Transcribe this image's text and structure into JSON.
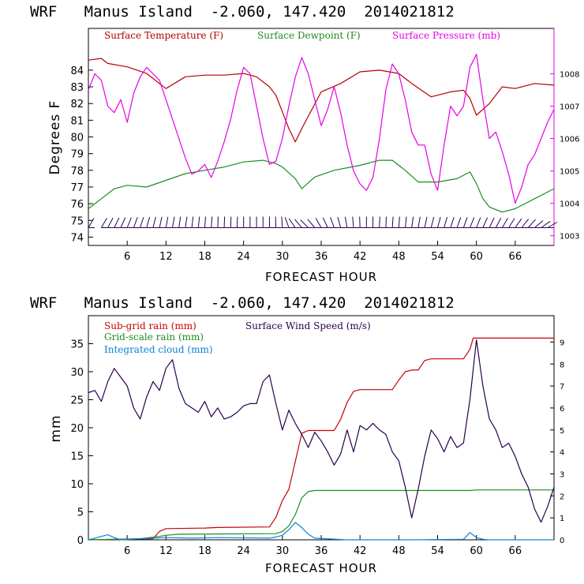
{
  "colors": {
    "temperature": "#b40000",
    "dewpoint": "#1e8c1e",
    "pressure": "#e600e6",
    "subgrid": "#c80000",
    "gridscale": "#1e8c1e",
    "cloud": "#0a82dc",
    "wind": "#280050",
    "barb": "#280050"
  },
  "chart_data": [
    {
      "type": "line",
      "title": "WRF   Manus Island  -2.060, 147.420  2014021812",
      "xlabel": "FORECAST HOUR",
      "ylabel": "Degrees F",
      "xlim": [
        0,
        72
      ],
      "xticks": [
        6,
        12,
        18,
        24,
        30,
        36,
        42,
        48,
        54,
        60,
        66
      ],
      "xtick_labels": [
        "6",
        "12",
        "18",
        "24",
        "30",
        "36",
        "42",
        "48",
        "54",
        "60",
        "66"
      ],
      "ylim": [
        73.5,
        86.5
      ],
      "yticks": [
        74,
        75,
        76,
        77,
        78,
        79,
        80,
        81,
        82,
        83,
        84
      ],
      "ytick_labels": [
        "74",
        "75",
        "76",
        "77",
        "78",
        "79",
        "80",
        "81",
        "82",
        "83",
        "84"
      ],
      "y2lim": [
        1002.7,
        1009.4
      ],
      "y2ticks": [
        1003,
        1004,
        1005,
        1006,
        1007,
        1008
      ],
      "y2tick_labels": [
        "1003",
        "1004",
        "1005",
        "1006",
        "1007",
        "1008"
      ],
      "legend": [
        "Surface Temperature (F)",
        "Surface Dewpoint (F)",
        "Surface Pressure (mb)"
      ],
      "series": [
        {
          "name": "Surface Temperature (F)",
          "axis": "left",
          "x": [
            0,
            2,
            3,
            6,
            9,
            12,
            15,
            18,
            21,
            24,
            26,
            28,
            29,
            30,
            31,
            32,
            33,
            36,
            39,
            42,
            45,
            48,
            50,
            53,
            56,
            58,
            59,
            60,
            62,
            64,
            66,
            69,
            72
          ],
          "y": [
            84.6,
            84.7,
            84.4,
            84.2,
            83.8,
            82.9,
            83.6,
            83.7,
            83.7,
            83.8,
            83.6,
            83.0,
            82.5,
            81.5,
            80.5,
            79.7,
            80.5,
            82.7,
            83.2,
            83.9,
            84.0,
            83.8,
            83.2,
            82.4,
            82.7,
            82.8,
            82.3,
            81.3,
            82.0,
            83.0,
            82.9,
            83.2,
            83.1
          ]
        },
        {
          "name": "Surface Dewpoint (F)",
          "axis": "left",
          "x": [
            0,
            2,
            4,
            6,
            9,
            12,
            15,
            18,
            21,
            24,
            27,
            29,
            30,
            32,
            33,
            35,
            38,
            42,
            45,
            47,
            49,
            51,
            54,
            57,
            59,
            60,
            61,
            62,
            64,
            66,
            69,
            72
          ],
          "y": [
            75.7,
            76.3,
            76.9,
            77.1,
            77.0,
            77.4,
            77.8,
            78.0,
            78.2,
            78.5,
            78.6,
            78.4,
            78.2,
            77.5,
            76.9,
            77.6,
            78.0,
            78.3,
            78.6,
            78.6,
            78.0,
            77.3,
            77.3,
            77.5,
            77.9,
            77.2,
            76.3,
            75.8,
            75.5,
            75.7,
            76.3,
            76.9
          ]
        },
        {
          "name": "Surface Pressure (mb)",
          "axis": "right",
          "x": [
            0,
            1,
            2,
            3,
            4,
            5,
            6,
            7,
            8,
            9,
            10,
            11,
            12,
            13,
            14,
            15,
            16,
            17,
            18,
            19,
            20,
            21,
            22,
            23,
            24,
            25,
            26,
            27,
            28,
            29,
            30,
            31,
            32,
            33,
            34,
            35,
            36,
            37,
            38,
            39,
            40,
            41,
            42,
            43,
            44,
            45,
            46,
            47,
            48,
            49,
            50,
            51,
            52,
            53,
            54,
            55,
            56,
            57,
            58,
            59,
            60,
            61,
            62,
            63,
            64,
            65,
            66,
            67,
            68,
            69,
            70,
            71,
            72
          ],
          "y": [
            1007.5,
            1008.0,
            1007.8,
            1007.0,
            1006.8,
            1007.2,
            1006.5,
            1007.4,
            1007.9,
            1008.2,
            1008.0,
            1007.8,
            1007.2,
            1006.6,
            1006.0,
            1005.4,
            1004.9,
            1005.0,
            1005.2,
            1004.8,
            1005.3,
            1005.9,
            1006.6,
            1007.5,
            1008.2,
            1008.0,
            1007.0,
            1006.0,
            1005.2,
            1005.3,
            1006.0,
            1007.0,
            1007.9,
            1008.5,
            1008.0,
            1007.2,
            1006.4,
            1006.9,
            1007.6,
            1006.8,
            1005.8,
            1005.0,
            1004.6,
            1004.4,
            1004.8,
            1006.0,
            1007.5,
            1008.3,
            1008.0,
            1007.2,
            1006.2,
            1005.8,
            1005.8,
            1004.9,
            1004.4,
            1005.8,
            1007.0,
            1006.7,
            1007.0,
            1008.2,
            1008.6,
            1007.2,
            1006.0,
            1006.2,
            1005.6,
            1004.9,
            1004.0,
            1004.5,
            1005.2,
            1005.5,
            1006.0,
            1006.5,
            1006.9
          ]
        }
      ],
      "wind_barbs": {
        "row_y": 74.8,
        "hours": [
          0,
          2,
          3,
          4,
          5,
          6,
          7,
          8,
          9,
          10,
          11,
          12,
          13,
          14,
          15,
          16,
          17,
          18,
          19,
          20,
          21,
          22,
          23,
          24,
          25,
          26,
          27,
          28,
          29,
          30,
          31,
          32,
          33,
          34,
          35,
          36,
          37,
          38,
          39,
          40,
          41,
          42,
          43,
          44,
          45,
          46,
          47,
          48,
          49,
          50,
          51,
          52,
          53,
          54,
          55,
          56,
          57,
          58,
          59,
          60,
          61,
          62,
          63,
          64,
          65,
          66,
          67,
          68,
          69,
          70,
          71
        ],
        "angle_deg": [
          60,
          60,
          62,
          64,
          66,
          68,
          70,
          72,
          74,
          76,
          78,
          80,
          80,
          82,
          82,
          84,
          84,
          86,
          86,
          88,
          88,
          88,
          88,
          90,
          90,
          90,
          90,
          90,
          92,
          94,
          110,
          125,
          130,
          135,
          130,
          120,
          115,
          110,
          105,
          100,
          95,
          92,
          90,
          90,
          88,
          88,
          86,
          86,
          84,
          82,
          80,
          78,
          76,
          75,
          74,
          72,
          70,
          70,
          68,
          68,
          66,
          64,
          62,
          60,
          58,
          55,
          52,
          48,
          40,
          35,
          30
        ]
      }
    },
    {
      "type": "line",
      "title": "WRF   Manus Island  -2.060, 147.420  2014021812",
      "xlabel": "FORECAST HOUR",
      "ylabel": "mm",
      "xlim": [
        0,
        72
      ],
      "xticks": [
        6,
        12,
        18,
        24,
        30,
        36,
        42,
        48,
        54,
        60,
        66
      ],
      "xtick_labels": [
        "6",
        "12",
        "18",
        "24",
        "30",
        "36",
        "42",
        "48",
        "54",
        "60",
        "66"
      ],
      "ylim": [
        0,
        40
      ],
      "yticks": [
        0,
        5,
        10,
        15,
        20,
        25,
        30,
        35
      ],
      "ytick_labels": [
        "0",
        "5",
        "10",
        "15",
        "20",
        "25",
        "30",
        "35"
      ],
      "y2lim": [
        0,
        10.2
      ],
      "y2ticks": [
        0,
        1,
        2,
        3,
        4,
        5,
        6,
        7,
        8,
        9
      ],
      "y2tick_labels": [
        "0",
        "1",
        "2",
        "3",
        "4",
        "5",
        "6",
        "7",
        "8",
        "9"
      ],
      "legend": [
        "Sub-grid rain (mm)",
        "Grid-scale rain (mm)",
        "Integrated cloud (mm)",
        "Surface Wind Speed (m/s)"
      ],
      "series": [
        {
          "name": "Sub-grid rain (mm)",
          "axis": "left",
          "x": [
            0,
            10,
            11,
            12,
            18,
            20,
            28,
            29,
            30,
            31,
            32,
            33,
            34,
            35,
            38,
            39,
            40,
            41,
            42,
            47,
            48,
            49,
            50,
            51,
            52,
            53,
            58,
            59,
            59.5,
            72
          ],
          "y": [
            0,
            0.2,
            1.5,
            2.0,
            2.1,
            2.2,
            2.3,
            4.0,
            7.0,
            9.0,
            14.0,
            19.0,
            19.5,
            19.5,
            19.5,
            21.5,
            24.5,
            26.5,
            26.8,
            26.8,
            28.5,
            30.0,
            30.3,
            30.3,
            32.0,
            32.3,
            32.3,
            34.0,
            36.0,
            36.0
          ]
        },
        {
          "name": "Grid-scale rain (mm)",
          "axis": "left",
          "x": [
            0,
            8,
            11,
            12,
            14,
            29,
            30,
            31,
            32,
            33,
            34,
            35,
            59,
            60,
            72
          ],
          "y": [
            0,
            0.2,
            0.6,
            0.8,
            1.0,
            1.1,
            1.5,
            2.5,
            4.5,
            7.5,
            8.6,
            8.8,
            8.8,
            8.9,
            8.9
          ]
        },
        {
          "name": "Integrated cloud (mm)",
          "axis": "left",
          "x": [
            0,
            1,
            2,
            3,
            4,
            5,
            8,
            12,
            16,
            20,
            28,
            29,
            30,
            31,
            32,
            33,
            34,
            35,
            40,
            50,
            58,
            59,
            60,
            61,
            62,
            72
          ],
          "y": [
            0,
            0.3,
            0.6,
            0.9,
            0.4,
            0,
            0.2,
            0.4,
            0.3,
            0.4,
            0.3,
            0.5,
            0.8,
            1.8,
            3.1,
            2.2,
            1.0,
            0.3,
            0,
            0,
            0.1,
            1.3,
            0.4,
            0.1,
            0,
            0
          ]
        },
        {
          "name": "Surface Wind Speed (m/s)",
          "axis": "right",
          "x": [
            0,
            1,
            2,
            3,
            4,
            5,
            6,
            7,
            8,
            9,
            10,
            11,
            12,
            13,
            14,
            15,
            16,
            17,
            18,
            19,
            20,
            21,
            22,
            23,
            24,
            25,
            26,
            27,
            28,
            29,
            30,
            31,
            32,
            33,
            34,
            35,
            36,
            37,
            38,
            39,
            40,
            41,
            42,
            43,
            44,
            45,
            46,
            47,
            48,
            49,
            50,
            51,
            52,
            53,
            54,
            55,
            56,
            57,
            58,
            59,
            60,
            61,
            62,
            63,
            64,
            65,
            66,
            67,
            68,
            69,
            70,
            71,
            72
          ],
          "y": [
            6.7,
            6.8,
            6.3,
            7.2,
            7.8,
            7.4,
            7.0,
            6.0,
            5.5,
            6.5,
            7.2,
            6.8,
            7.8,
            8.2,
            6.9,
            6.2,
            6.0,
            5.8,
            6.3,
            5.6,
            6.0,
            5.5,
            5.6,
            5.8,
            6.1,
            6.2,
            6.2,
            7.2,
            7.5,
            6.2,
            5.0,
            5.9,
            5.3,
            4.8,
            4.2,
            4.9,
            4.5,
            4.0,
            3.4,
            3.9,
            5.0,
            4.0,
            5.2,
            5.0,
            5.3,
            5.0,
            4.8,
            4.0,
            3.6,
            2.4,
            1.0,
            2.3,
            3.8,
            5.0,
            4.6,
            4.0,
            4.7,
            4.2,
            4.4,
            6.4,
            9.1,
            7.0,
            5.5,
            5.0,
            4.2,
            4.4,
            3.8,
            3.0,
            2.4,
            1.4,
            0.8,
            1.5,
            2.4
          ]
        }
      ]
    }
  ]
}
